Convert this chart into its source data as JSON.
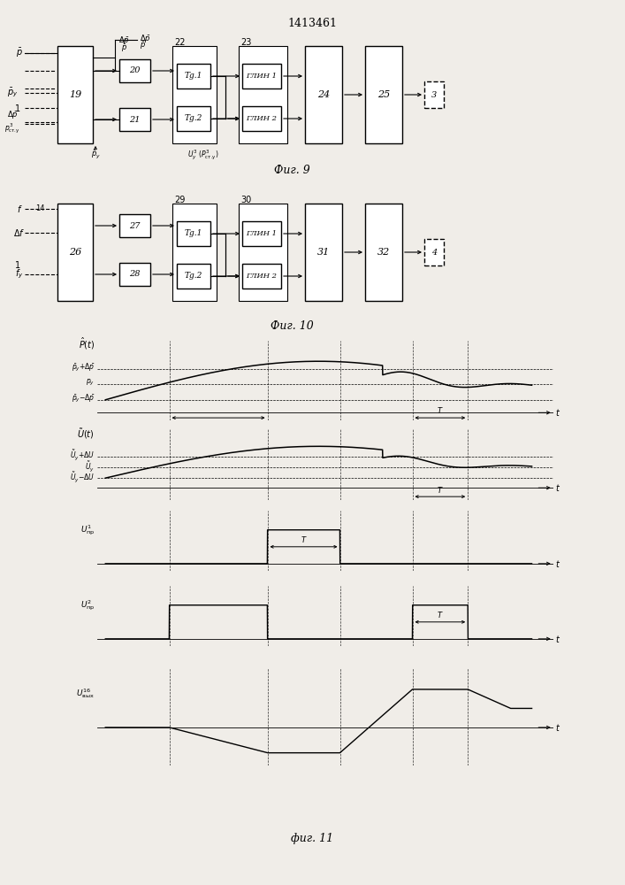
{
  "title": "1413461",
  "fig9_label": "Фиг. 9",
  "fig10_label": "Фиг. 10",
  "fig11_label": "фиг. 11",
  "bg_color": "#f0ede8"
}
